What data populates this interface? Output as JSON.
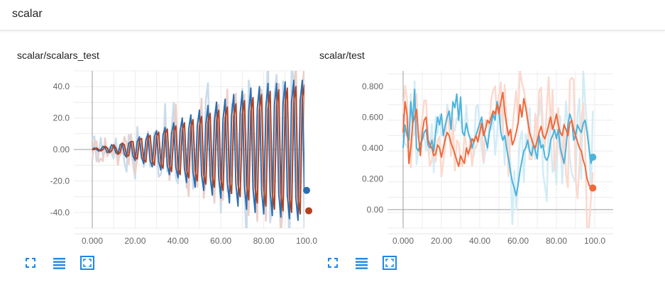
{
  "header": {
    "title": "scalar"
  },
  "icons": {
    "fullscreen": "fullscreen-icon",
    "toggle_log": "lines-icon",
    "fit_domain": "fit-domain-icon"
  },
  "colors": {
    "grid": "#e0e0e0",
    "axis": "#aaaaaa",
    "blue": "#2b6eaf",
    "red": "#b5401e",
    "cyan": "#4bb3dc",
    "orange": "#f0683a"
  },
  "chart_data": [
    {
      "type": "line",
      "title": "scalar/scalars_test",
      "xlim": [
        -5,
        103
      ],
      "ylim": [
        -50,
        50
      ],
      "x_ticks": [
        0,
        20,
        40,
        60,
        80,
        100
      ],
      "x_tick_labels": [
        "0.000",
        "20.00",
        "40.00",
        "60.00",
        "80.00",
        "100.0"
      ],
      "y_ticks": [
        40,
        20,
        0,
        -20,
        -40
      ],
      "y_tick_labels": [
        "40.0",
        "20.0",
        "0.00",
        "-20.0",
        "-40.0"
      ],
      "grid": true,
      "series": [
        {
          "color": "#2b6eaf",
          "values_y": [
            0,
            1,
            0,
            -1,
            0,
            2,
            1,
            -2,
            -1,
            3,
            2,
            -2,
            -3,
            3,
            4,
            -3,
            -5,
            4,
            5,
            -4,
            -7,
            5,
            8,
            -5,
            -9,
            6,
            10,
            -7,
            -11,
            8,
            12,
            -8,
            -13,
            9,
            14,
            -10,
            -16,
            10,
            17,
            -11,
            -18,
            12,
            20,
            -12,
            -21,
            13,
            22,
            -14,
            -24,
            15,
            25,
            -16,
            -26,
            16,
            28,
            -17,
            -29,
            18,
            30,
            -18,
            -31,
            19,
            32,
            -20,
            -34,
            21,
            35,
            -22,
            -36,
            23,
            37,
            -23,
            -38,
            24,
            39,
            -25,
            -40,
            26,
            40,
            -26,
            -41,
            27,
            42,
            -27,
            -42,
            28,
            42,
            -28,
            -43,
            29,
            43,
            -29,
            -44,
            30,
            44,
            -31,
            -45,
            31,
            44,
            -26,
            -26
          ]
        },
        {
          "color": "#b5401e",
          "values_y": [
            0,
            0,
            1,
            0,
            -1,
            0,
            2,
            1,
            -2,
            -1,
            3,
            1,
            -3,
            -2,
            4,
            3,
            -4,
            -4,
            5,
            5,
            -5,
            -6,
            6,
            7,
            -6,
            -8,
            7,
            9,
            -7,
            -10,
            8,
            11,
            -9,
            -12,
            10,
            13,
            -10,
            -14,
            11,
            15,
            -12,
            -16,
            12,
            17,
            -13,
            -18,
            14,
            19,
            -14,
            -20,
            15,
            21,
            -16,
            -22,
            17,
            23,
            -17,
            -24,
            18,
            25,
            -19,
            -26,
            20,
            27,
            -20,
            -28,
            21,
            29,
            -22,
            -30,
            22,
            31,
            -23,
            -32,
            24,
            33,
            -24,
            -34,
            25,
            35,
            -26,
            -36,
            26,
            37,
            -27,
            -38,
            28,
            38,
            -28,
            -39,
            29,
            39,
            -30,
            -40,
            30,
            40,
            -31,
            -41,
            32,
            41,
            -39,
            -39
          ]
        }
      ]
    },
    {
      "type": "line",
      "title": "scalar/test",
      "xlim": [
        -5,
        103
      ],
      "ylim": [
        -0.12,
        0.9
      ],
      "x_ticks": [
        0,
        20,
        40,
        60,
        80,
        100
      ],
      "x_tick_labels": [
        "0.000",
        "20.00",
        "40.00",
        "60.00",
        "80.00",
        "100.0"
      ],
      "y_ticks": [
        0.8,
        0.6,
        0.4,
        0.2,
        0.0
      ],
      "y_tick_labels": [
        "0.800",
        "0.600",
        "0.400",
        "0.200",
        "0.00"
      ],
      "grid": true,
      "series": [
        {
          "color": "#4bb3dc",
          "values_y": [
            0.4,
            0.55,
            0.48,
            0.45,
            0.7,
            0.56,
            0.78,
            0.4,
            0.38,
            0.43,
            0.45,
            0.5,
            0.52,
            0.42,
            0.4,
            0.45,
            0.38,
            0.5,
            0.6,
            0.55,
            0.62,
            0.48,
            0.55,
            0.6,
            0.64,
            0.52,
            0.7,
            0.66,
            0.75,
            0.58,
            0.73,
            0.5,
            0.48,
            0.56,
            0.5,
            0.46,
            0.4,
            0.45,
            0.48,
            0.52,
            0.56,
            0.6,
            0.5,
            0.46,
            0.4,
            0.5,
            0.56,
            0.62,
            0.58,
            0.7,
            0.65,
            0.5,
            0.45,
            0.48,
            0.4,
            0.33,
            0.25,
            0.18,
            0.14,
            0.09,
            0.16,
            0.25,
            0.32,
            0.38,
            0.4,
            0.45,
            0.38,
            0.35,
            0.42,
            0.38,
            0.33,
            0.48,
            0.4,
            0.42,
            0.34,
            0.32,
            0.35,
            0.45,
            0.48,
            0.52,
            0.46,
            0.52,
            0.4,
            0.35,
            0.3,
            0.4,
            0.55,
            0.62,
            0.58,
            0.45,
            0.48,
            0.55,
            0.52,
            0.5,
            0.56,
            0.58,
            0.5,
            0.4,
            0.3,
            0.34
          ]
        },
        {
          "color": "#f0683a",
          "values_y": [
            0.5,
            0.7,
            0.62,
            0.3,
            0.4,
            0.56,
            0.6,
            0.65,
            0.48,
            0.35,
            0.5,
            0.58,
            0.6,
            0.45,
            0.42,
            0.4,
            0.35,
            0.36,
            0.42,
            0.4,
            0.34,
            0.4,
            0.46,
            0.5,
            0.48,
            0.43,
            0.4,
            0.36,
            0.32,
            0.28,
            0.35,
            0.32,
            0.3,
            0.4,
            0.36,
            0.4,
            0.46,
            0.44,
            0.48,
            0.44,
            0.5,
            0.56,
            0.48,
            0.52,
            0.58,
            0.56,
            0.6,
            0.64,
            0.62,
            0.68,
            0.62,
            0.7,
            0.76,
            0.64,
            0.55,
            0.48,
            0.52,
            0.42,
            0.45,
            0.5,
            0.56,
            0.68,
            0.6,
            0.72,
            0.66,
            0.58,
            0.5,
            0.46,
            0.42,
            0.4,
            0.45,
            0.5,
            0.54,
            0.48,
            0.46,
            0.5,
            0.55,
            0.6,
            0.52,
            0.56,
            0.62,
            0.55,
            0.5,
            0.48,
            0.55,
            0.52,
            0.48,
            0.56,
            0.58,
            0.52,
            0.48,
            0.44,
            0.4,
            0.38,
            0.32,
            0.28,
            0.2,
            0.16,
            0.14,
            0.14
          ]
        }
      ]
    }
  ]
}
